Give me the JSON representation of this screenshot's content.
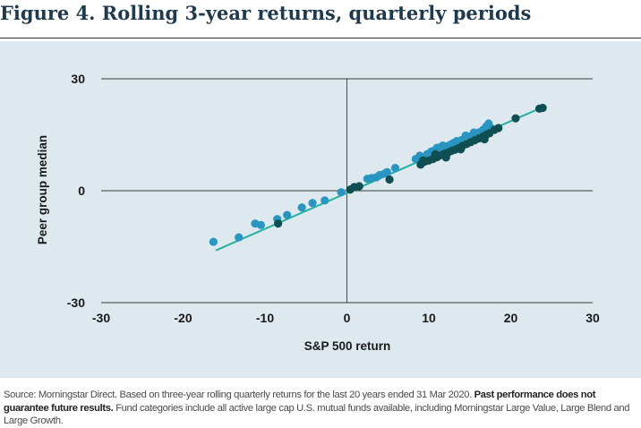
{
  "figure": {
    "title": "Figure 4. Rolling 3-year returns, quarterly periods"
  },
  "footnote": {
    "source": "Source: Morningstar Direct. Based on three-year rolling quarterly returns for the last 20 years ended 31 Mar 2020.",
    "emphasis": "Past performance does not guarantee future results.",
    "rest": "Fund categories include all active large cap U.S. mutual funds available, including Morningstar Large Value, Large Blend and Large Growth."
  },
  "chart_data": {
    "type": "scatter",
    "title": "",
    "xlabel": "S&P 500 return",
    "ylabel": "Peer group median",
    "xlim": [
      -30,
      30
    ],
    "ylim": [
      -30,
      30
    ],
    "x_ticks": [
      -30,
      -20,
      -10,
      0,
      10,
      20,
      30
    ],
    "y_ticks": [
      -30,
      0,
      30
    ],
    "grid": false,
    "legend": "none",
    "trendline": {
      "x": [
        -16,
        24
      ],
      "y": [
        -16,
        22.5
      ],
      "color": "#25b0a0"
    },
    "colors": {
      "light": "#2a95c0",
      "dark": "#0f4f54"
    },
    "series": [
      {
        "color": "#2a95c0",
        "points": [
          [
            -16.3,
            -13.7
          ],
          [
            -13.2,
            -12.5
          ],
          [
            -11.2,
            -8.8
          ],
          [
            -10.5,
            -9.2
          ],
          [
            -8.5,
            -7.6
          ],
          [
            -7.3,
            -6.5
          ],
          [
            -5.5,
            -4.5
          ],
          [
            -4.2,
            -3.3
          ],
          [
            -2.7,
            -2.6
          ],
          [
            -0.7,
            -0.4
          ],
          [
            2.5,
            3.2
          ],
          [
            3.0,
            3.4
          ],
          [
            3.6,
            3.6
          ],
          [
            4.0,
            4.2
          ],
          [
            4.6,
            4.6
          ],
          [
            4.9,
            5.0
          ],
          [
            5.9,
            6.1
          ],
          [
            8.4,
            8.5
          ],
          [
            8.9,
            9.4
          ],
          [
            9.8,
            9.8
          ],
          [
            10.3,
            10.5
          ],
          [
            10.7,
            10.8
          ],
          [
            11.0,
            11.5
          ],
          [
            11.4,
            11.6
          ],
          [
            11.7,
            12.1
          ],
          [
            12.2,
            11.9
          ],
          [
            12.6,
            12.3
          ],
          [
            13.0,
            12.8
          ],
          [
            13.4,
            13.3
          ],
          [
            14.0,
            13.6
          ],
          [
            14.5,
            14.8
          ],
          [
            15.0,
            14.5
          ],
          [
            15.5,
            15.6
          ],
          [
            16.1,
            15.6
          ],
          [
            16.6,
            16.3
          ],
          [
            17.0,
            17.2
          ],
          [
            17.3,
            18.0
          ],
          [
            17.6,
            16.8
          ],
          [
            10.0,
            9.6
          ],
          [
            12.4,
            10.8
          ]
        ]
      },
      {
        "color": "#0f4f54",
        "points": [
          [
            -8.4,
            -8.8
          ],
          [
            0.4,
            0.3
          ],
          [
            0.9,
            1.0
          ],
          [
            1.5,
            1.2
          ],
          [
            5.2,
            3.0
          ],
          [
            9.0,
            7.0
          ],
          [
            9.5,
            7.8
          ],
          [
            10.0,
            8.1
          ],
          [
            10.5,
            8.5
          ],
          [
            11.0,
            9.0
          ],
          [
            11.3,
            9.4
          ],
          [
            11.7,
            9.7
          ],
          [
            12.0,
            10.0
          ],
          [
            12.4,
            10.3
          ],
          [
            12.8,
            10.7
          ],
          [
            13.2,
            11.0
          ],
          [
            13.6,
            11.4
          ],
          [
            14.1,
            12.0
          ],
          [
            14.6,
            12.5
          ],
          [
            15.1,
            13.0
          ],
          [
            15.6,
            13.5
          ],
          [
            16.1,
            14.0
          ],
          [
            16.6,
            14.5
          ],
          [
            17.0,
            15.0
          ],
          [
            17.4,
            15.4
          ],
          [
            18.0,
            16.3
          ],
          [
            18.5,
            16.8
          ],
          [
            20.6,
            19.4
          ],
          [
            23.5,
            22.0
          ],
          [
            23.9,
            22.2
          ],
          [
            9.3,
            8.1
          ],
          [
            10.8,
            9.8
          ],
          [
            12.1,
            8.9
          ],
          [
            13.9,
            11.1
          ],
          [
            16.8,
            13.8
          ]
        ]
      }
    ]
  }
}
